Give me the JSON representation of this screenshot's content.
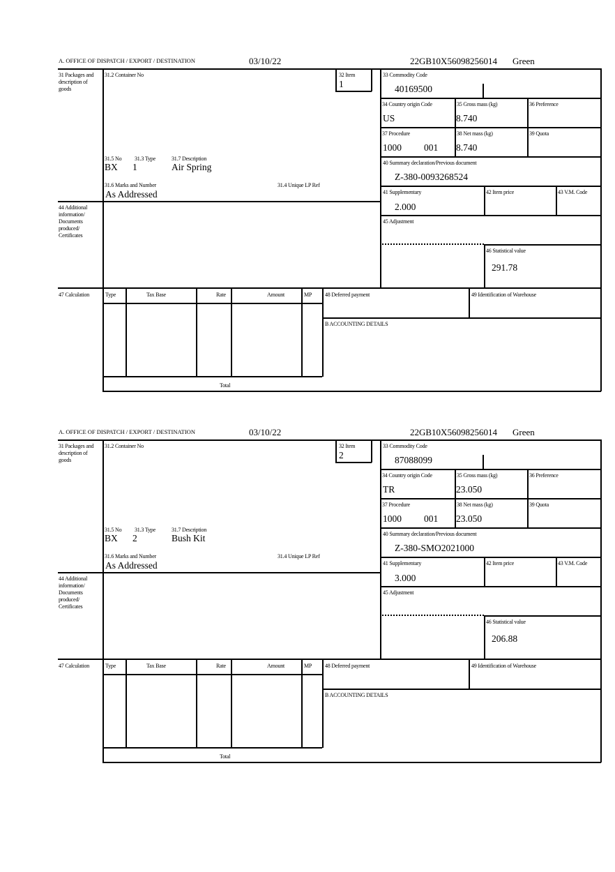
{
  "labels": {
    "office": "A.  OFFICE OF DISPATCH / EXPORT / DESTINATION",
    "packages": "31 Packages and description of goods",
    "container_no": "31.2 Container No",
    "item": "32 Item",
    "no": "31.5 No",
    "type": "31.3 Type",
    "description": "31.7 Description",
    "marks": "31.6 Marks and Number",
    "unique_lp_ref": "31.4 Unique LP Ref",
    "commodity_code": "33 Commodity Code",
    "country_origin": "34 Country origin Code",
    "gross_mass": "35 Gross mass (kg)",
    "preference": "36 Preference",
    "procedure": "37 Procedure",
    "net_mass": "38 Net mass (kg)",
    "quota": "39 Quota",
    "summary_decl": "40 Summary declaration/Previous document",
    "supplementary": "41 Supplementary",
    "item_price": "42 Item price",
    "vm_code": "43 V.M. Code",
    "additional_info": "44 Additional information/ Documents produced/ Certificates",
    "adjustment": "45 Adjustment",
    "statistical_value": "46 Statistical value",
    "calculation": "47 Calculation",
    "calc_headers": [
      "Type",
      "Tax Base",
      "Rate",
      "Amount",
      "MP"
    ],
    "total": "Total",
    "deferred_payment": "48 Deferred payment",
    "warehouse": "49 Identification of Warehouse",
    "accounting": "B ACCOUNTING DETAILS"
  },
  "forms": [
    {
      "date": "03/10/22",
      "reference": "22GB10X56098256014",
      "route": "Green",
      "item": "1",
      "package_no": "BX",
      "package_type": "1",
      "description": "Air Spring",
      "marks": "As Addressed",
      "commodity_code": "40169500",
      "country_origin": "US",
      "gross_mass": "8.740",
      "procedure": "1000",
      "procedure_additional": "001",
      "net_mass": "8.740",
      "summary_decl": "Z-380-0093268524",
      "supplementary": "2.000",
      "statistical_value": "291.78"
    },
    {
      "date": "03/10/22",
      "reference": "22GB10X56098256014",
      "route": "Green",
      "item": "2",
      "package_no": "BX",
      "package_type": "2",
      "description": "Bush Kit",
      "marks": "As Addressed",
      "commodity_code": "87088099",
      "country_origin": "TR",
      "gross_mass": "23.050",
      "procedure": "1000",
      "procedure_additional": "001",
      "net_mass": "23.050",
      "summary_decl": "Z-380-SMO2021000",
      "supplementary": "3.000",
      "statistical_value": "206.88"
    }
  ]
}
